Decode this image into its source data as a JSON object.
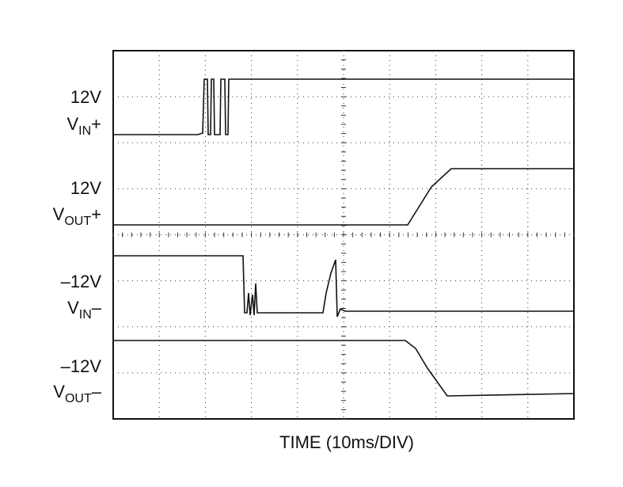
{
  "chart_data": {
    "type": "scope",
    "x_label": "TIME (10ms/DIV)",
    "traces": [
      {
        "level": "12V",
        "name": {
          "main": "V",
          "sub": "IN",
          "suffix": "+"
        }
      },
      {
        "level": "12V",
        "name": {
          "main": "V",
          "sub": "OUT",
          "suffix": "+"
        }
      },
      {
        "level": "–12V",
        "name": {
          "main": "V",
          "sub": "IN",
          "suffix": "–"
        }
      },
      {
        "level": "–12V",
        "name": {
          "main": "V",
          "sub": "OUT",
          "suffix": "–"
        }
      }
    ]
  }
}
